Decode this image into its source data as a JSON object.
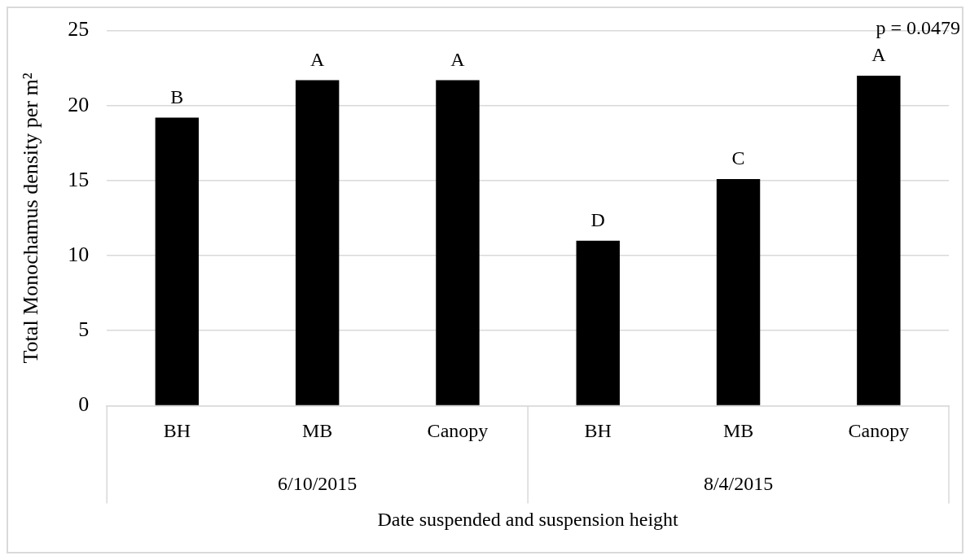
{
  "chart_data": {
    "type": "bar",
    "xlabel": "Date suspended and suspension height",
    "ylabel": "Total Monochamus density per m²",
    "categories": [
      "BH",
      "MB",
      "Canopy",
      "BH",
      "MB",
      "Canopy"
    ],
    "values": [
      19.2,
      21.7,
      21.7,
      11.0,
      15.1,
      22.0
    ],
    "color": "#000000",
    "value_labels": [
      "B",
      "A",
      "A",
      "D",
      "C",
      "A"
    ],
    "annotations": [
      "6/10/2015",
      "8/4/2015",
      "p = 0.0479"
    ],
    "ylim": [
      0,
      25
    ],
    "yticks": [
      0,
      5,
      10,
      15,
      20,
      25
    ],
    "grid": "y",
    "legend": false
  }
}
